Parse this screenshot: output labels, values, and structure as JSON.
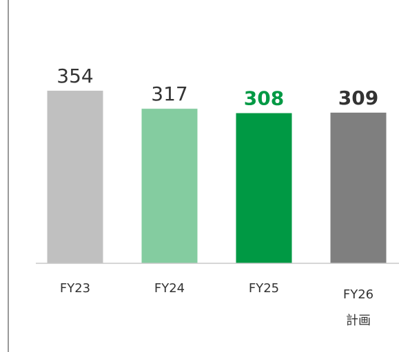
{
  "chart_data": {
    "type": "bar",
    "categories": [
      "FY23",
      "FY24",
      "FY25",
      "FY26\n計画"
    ],
    "values": [
      354,
      317,
      308,
      309
    ],
    "colors": [
      "#c0c0c0",
      "#84cca0",
      "#009944",
      "#7f7f7f"
    ],
    "label_colors": [
      "#333333",
      "#333333",
      "#009944",
      "#333333"
    ],
    "label_bold": [
      false,
      false,
      true,
      true
    ],
    "ylim": [
      0,
      540
    ]
  }
}
